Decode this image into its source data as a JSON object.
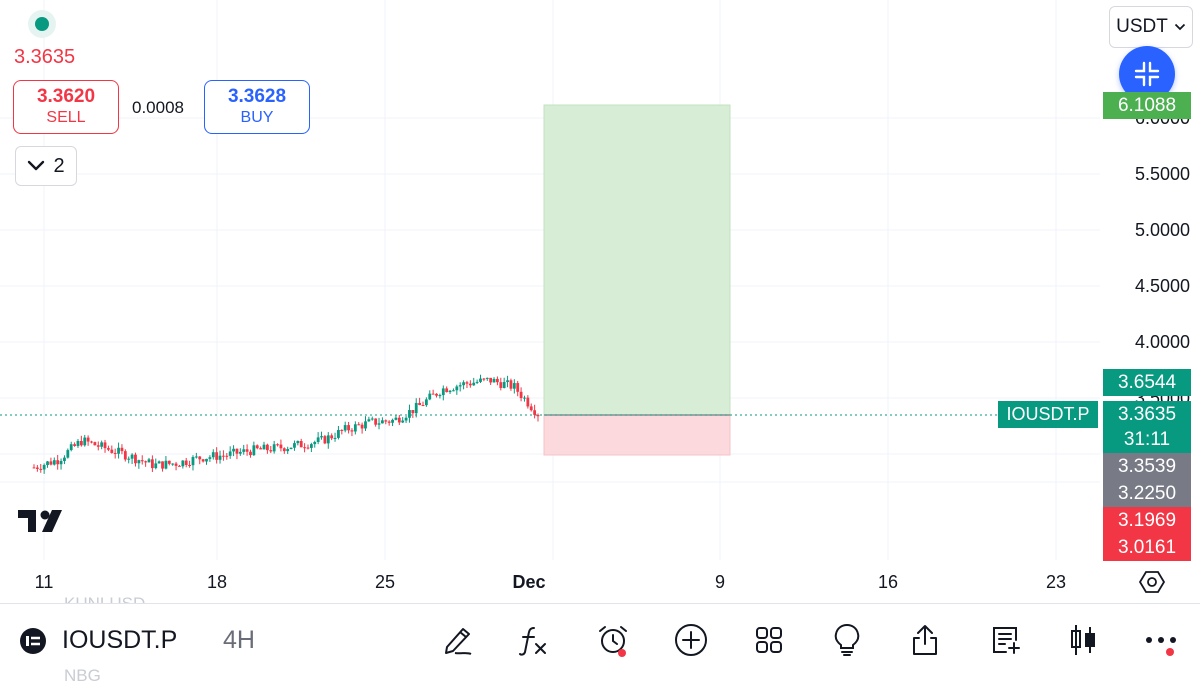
{
  "colors": {
    "up": "#089981",
    "down": "#f23645",
    "accent": "#2962ff",
    "profit_zone": "#d7edd5",
    "loss_zone": "#fbd9dc",
    "gray_tag": "#787b86"
  },
  "header": {
    "last_price": "3.3635",
    "sell": {
      "price": "3.3620",
      "label": "SELL"
    },
    "buy": {
      "price": "3.3628",
      "label": "BUY"
    },
    "spread": "0.0008",
    "collapse_count": "2"
  },
  "currency": "USDT",
  "price_axis": {
    "labels": [
      "6.0000",
      "5.5000",
      "5.0000",
      "4.5000",
      "4.0000",
      "3.5000"
    ],
    "tags": {
      "target": "6.1088",
      "upper": "3.6544",
      "current": "3.3635",
      "countdown": "31:11",
      "gray_1": "3.3539",
      "gray_2": "3.2250",
      "red_1": "3.1969",
      "red_2": "3.0161"
    },
    "symbol_tag": "IOUSDT.P"
  },
  "time_axis": [
    "11",
    "18",
    "25",
    "Dec",
    "9",
    "16",
    "23"
  ],
  "ghost_texts": [
    "KUNLUSD",
    "NBG"
  ],
  "toolbar": {
    "symbol": "IOUSDT.P",
    "interval": "4H",
    "icons": [
      "draw-icon",
      "indicators-icon",
      "alert-icon",
      "add-icon",
      "layout-icon",
      "ideas-icon",
      "share-icon",
      "order-panel-icon",
      "chart-type-icon",
      "more-icon"
    ]
  },
  "chart_data": {
    "type": "candlestick",
    "symbol": "IOUSDT.P",
    "interval": "4H",
    "y_axis_ticks": [
      3.5,
      4.0,
      4.5,
      5.0,
      5.5,
      6.0
    ],
    "x_axis_ticks": [
      "11",
      "18",
      "25",
      "Dec",
      "9",
      "16",
      "23"
    ],
    "close_series_approx": [
      2.88,
      2.95,
      3.12,
      3.05,
      2.98,
      2.9,
      2.92,
      2.97,
      2.99,
      3.03,
      3.05,
      3.08,
      3.12,
      3.22,
      3.28,
      3.3,
      3.42,
      3.58,
      3.63,
      3.66,
      3.6,
      3.36
    ],
    "position": {
      "side": "long",
      "entry": 3.3635,
      "target": 6.1088,
      "stop": 3.0161
    },
    "last": 3.3635
  }
}
